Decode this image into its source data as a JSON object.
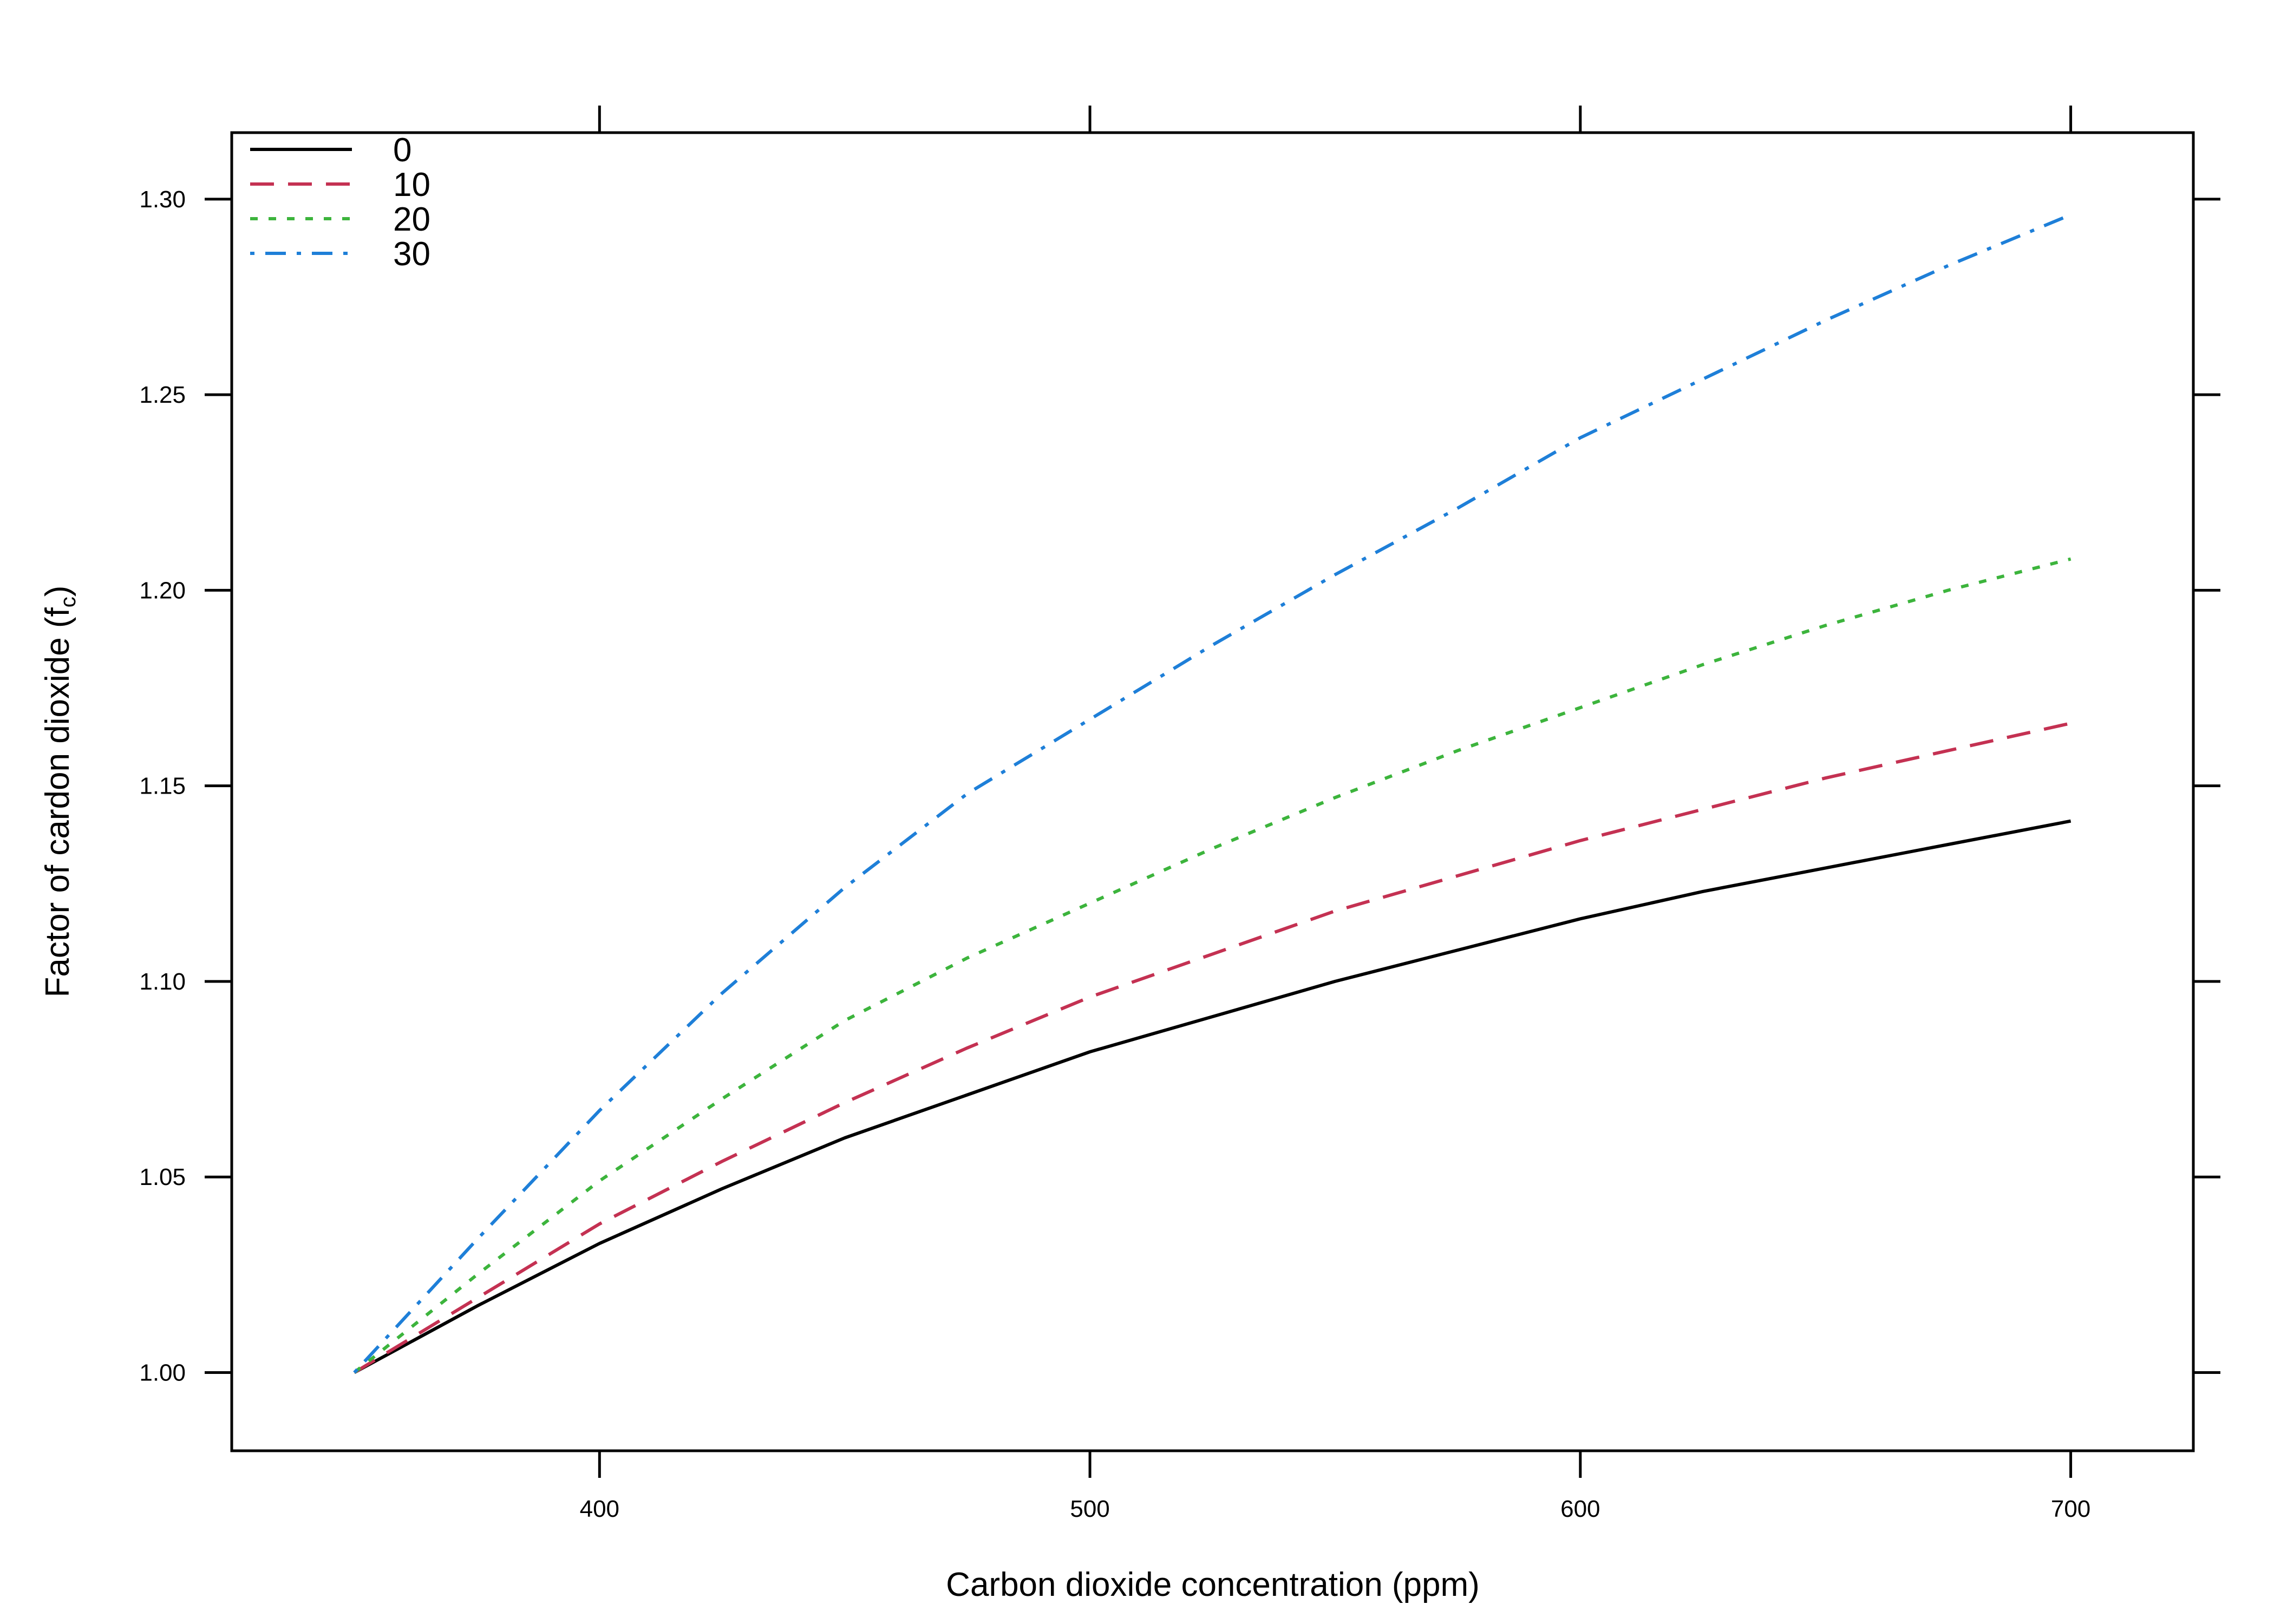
{
  "chart_data": {
    "type": "line",
    "xlabel": "Carbon dioxide concentration (ppm)",
    "ylabel": "Factor of cardon dioxide",
    "ylabel_symbol": "f",
    "ylabel_subscript": "c",
    "xlim": [
      325,
      725
    ],
    "ylim": [
      0.98,
      1.317
    ],
    "xticks": [
      400,
      500,
      600,
      700
    ],
    "xtick_labels": [
      "400",
      "500",
      "600",
      "700"
    ],
    "yticks": [
      1.0,
      1.05,
      1.1,
      1.15,
      1.2,
      1.25,
      1.3
    ],
    "ytick_labels": [
      "1.00",
      "1.05",
      "1.10",
      "1.15",
      "1.20",
      "1.25",
      "1.30"
    ],
    "grid": false,
    "legend_position": "top-left",
    "x": [
      350,
      375,
      400,
      425,
      450,
      475,
      500,
      525,
      550,
      575,
      600,
      625,
      650,
      675,
      700
    ],
    "series": [
      {
        "name": "0",
        "color": "#000000",
        "dash": "solid",
        "values": [
          1.0,
          1.017,
          1.033,
          1.047,
          1.06,
          1.071,
          1.082,
          1.091,
          1.1,
          1.108,
          1.116,
          1.123,
          1.129,
          1.135,
          1.141
        ]
      },
      {
        "name": "10",
        "color": "#c43152",
        "dash": "dashed",
        "values": [
          1.0,
          1.019,
          1.038,
          1.054,
          1.069,
          1.083,
          1.096,
          1.107,
          1.118,
          1.127,
          1.136,
          1.144,
          1.152,
          1.159,
          1.166
        ]
      },
      {
        "name": "20",
        "color": "#3cb43c",
        "dash": "dotted",
        "values": [
          1.0,
          1.025,
          1.049,
          1.07,
          1.09,
          1.106,
          1.12,
          1.134,
          1.147,
          1.159,
          1.17,
          1.181,
          1.191,
          1.2,
          1.208
        ]
      },
      {
        "name": "30",
        "color": "#1e7fd8",
        "dash": "dashdot",
        "values": [
          1.0,
          1.034,
          1.067,
          1.097,
          1.124,
          1.148,
          1.167,
          1.186,
          1.204,
          1.221,
          1.239,
          1.254,
          1.269,
          1.283,
          1.296
        ]
      }
    ]
  }
}
